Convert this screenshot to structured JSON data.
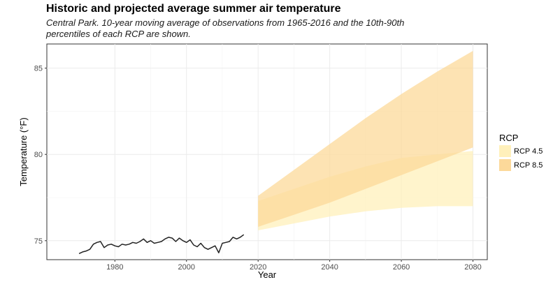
{
  "chart_data": {
    "type": "area",
    "title": "Historic and projected average summer air temperature",
    "subtitle_lines": [
      "Central Park. 10-year moving average of observations from 1965-2016 and the 10th-90th",
      "percentiles of each RCP are shown."
    ],
    "xlabel": "Year",
    "ylabel": "Temperature (°F)",
    "xlim": [
      1961,
      2084
    ],
    "ylim": [
      73.9,
      86.4
    ],
    "x_ticks": [
      1980,
      2000,
      2020,
      2040,
      2060,
      2080
    ],
    "y_ticks": [
      75,
      80,
      85
    ],
    "grid": true,
    "legend_title": "RCP",
    "legend_position": "right",
    "observed": {
      "color": "#222222",
      "x": [
        1970,
        1971,
        1972,
        1973,
        1974,
        1975,
        1976,
        1977,
        1978,
        1979,
        1980,
        1981,
        1982,
        1983,
        1984,
        1985,
        1986,
        1987,
        1988,
        1989,
        1990,
        1991,
        1992,
        1993,
        1994,
        1995,
        1996,
        1997,
        1998,
        1999,
        2000,
        2001,
        2002,
        2003,
        2004,
        2005,
        2006,
        2007,
        2008,
        2009,
        2010,
        2011,
        2012,
        2013,
        2014,
        2015,
        2016
      ],
      "y": [
        74.25,
        74.35,
        74.4,
        74.5,
        74.8,
        74.9,
        74.95,
        74.6,
        74.75,
        74.8,
        74.7,
        74.65,
        74.8,
        74.75,
        74.8,
        74.9,
        74.85,
        74.95,
        75.1,
        74.9,
        75.0,
        74.85,
        74.9,
        74.95,
        75.1,
        75.2,
        75.15,
        74.95,
        75.15,
        75.0,
        74.9,
        75.05,
        74.75,
        74.65,
        74.85,
        74.6,
        74.5,
        74.6,
        74.7,
        74.3,
        74.85,
        74.9,
        74.95,
        75.2,
        75.1,
        75.2,
        75.35
      ]
    },
    "series": [
      {
        "name": "RCP 4.5",
        "color": "#fff0bb",
        "x": [
          2020,
          2030,
          2040,
          2050,
          2060,
          2070,
          2080
        ],
        "low": [
          75.6,
          76.0,
          76.4,
          76.7,
          76.9,
          77.0,
          77.0
        ],
        "high": [
          77.3,
          78.0,
          78.7,
          79.3,
          79.8,
          80.0,
          80.2
        ]
      },
      {
        "name": "RCP 8.5",
        "color": "#fcd99a",
        "x": [
          2020,
          2030,
          2040,
          2050,
          2060,
          2070,
          2080
        ],
        "low": [
          75.8,
          76.5,
          77.2,
          78.0,
          78.8,
          79.6,
          80.4
        ],
        "high": [
          77.6,
          79.1,
          80.6,
          82.1,
          83.5,
          84.8,
          86.0
        ]
      }
    ]
  }
}
